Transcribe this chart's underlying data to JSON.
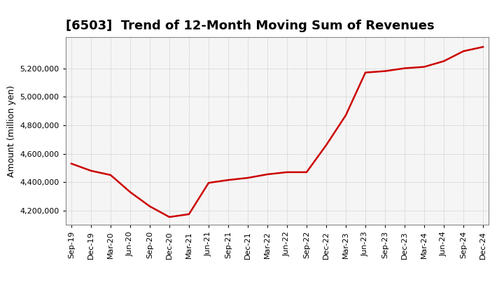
{
  "title": "[6503]  Trend of 12-Month Moving Sum of Revenues",
  "ylabel": "Amount (million yen)",
  "line_color": "#CC0000",
  "background_color": "#ffffff",
  "plot_bg_color": "#f5f5f5",
  "grid_color": "#aaaaaa",
  "x_labels": [
    "Sep-19",
    "Dec-19",
    "Mar-20",
    "Jun-20",
    "Sep-20",
    "Dec-20",
    "Mar-21",
    "Jun-21",
    "Sep-21",
    "Dec-21",
    "Mar-22",
    "Jun-22",
    "Sep-22",
    "Dec-22",
    "Mar-23",
    "Jun-23",
    "Sep-23",
    "Dec-23",
    "Mar-24",
    "Jun-24",
    "Sep-24",
    "Dec-24"
  ],
  "values": [
    4530000,
    4480000,
    4450000,
    4330000,
    4230000,
    4155000,
    4175000,
    4395000,
    4415000,
    4430000,
    4455000,
    4470000,
    4470000,
    4660000,
    4870000,
    5170000,
    5180000,
    5200000,
    5210000,
    5250000,
    5320000,
    5350000
  ],
  "ylim": [
    4100000,
    5420000
  ],
  "yticks": [
    4200000,
    4400000,
    4600000,
    4800000,
    5000000,
    5200000
  ],
  "title_fontsize": 13,
  "tick_fontsize": 8,
  "ylabel_fontsize": 9,
  "line_width": 1.8
}
